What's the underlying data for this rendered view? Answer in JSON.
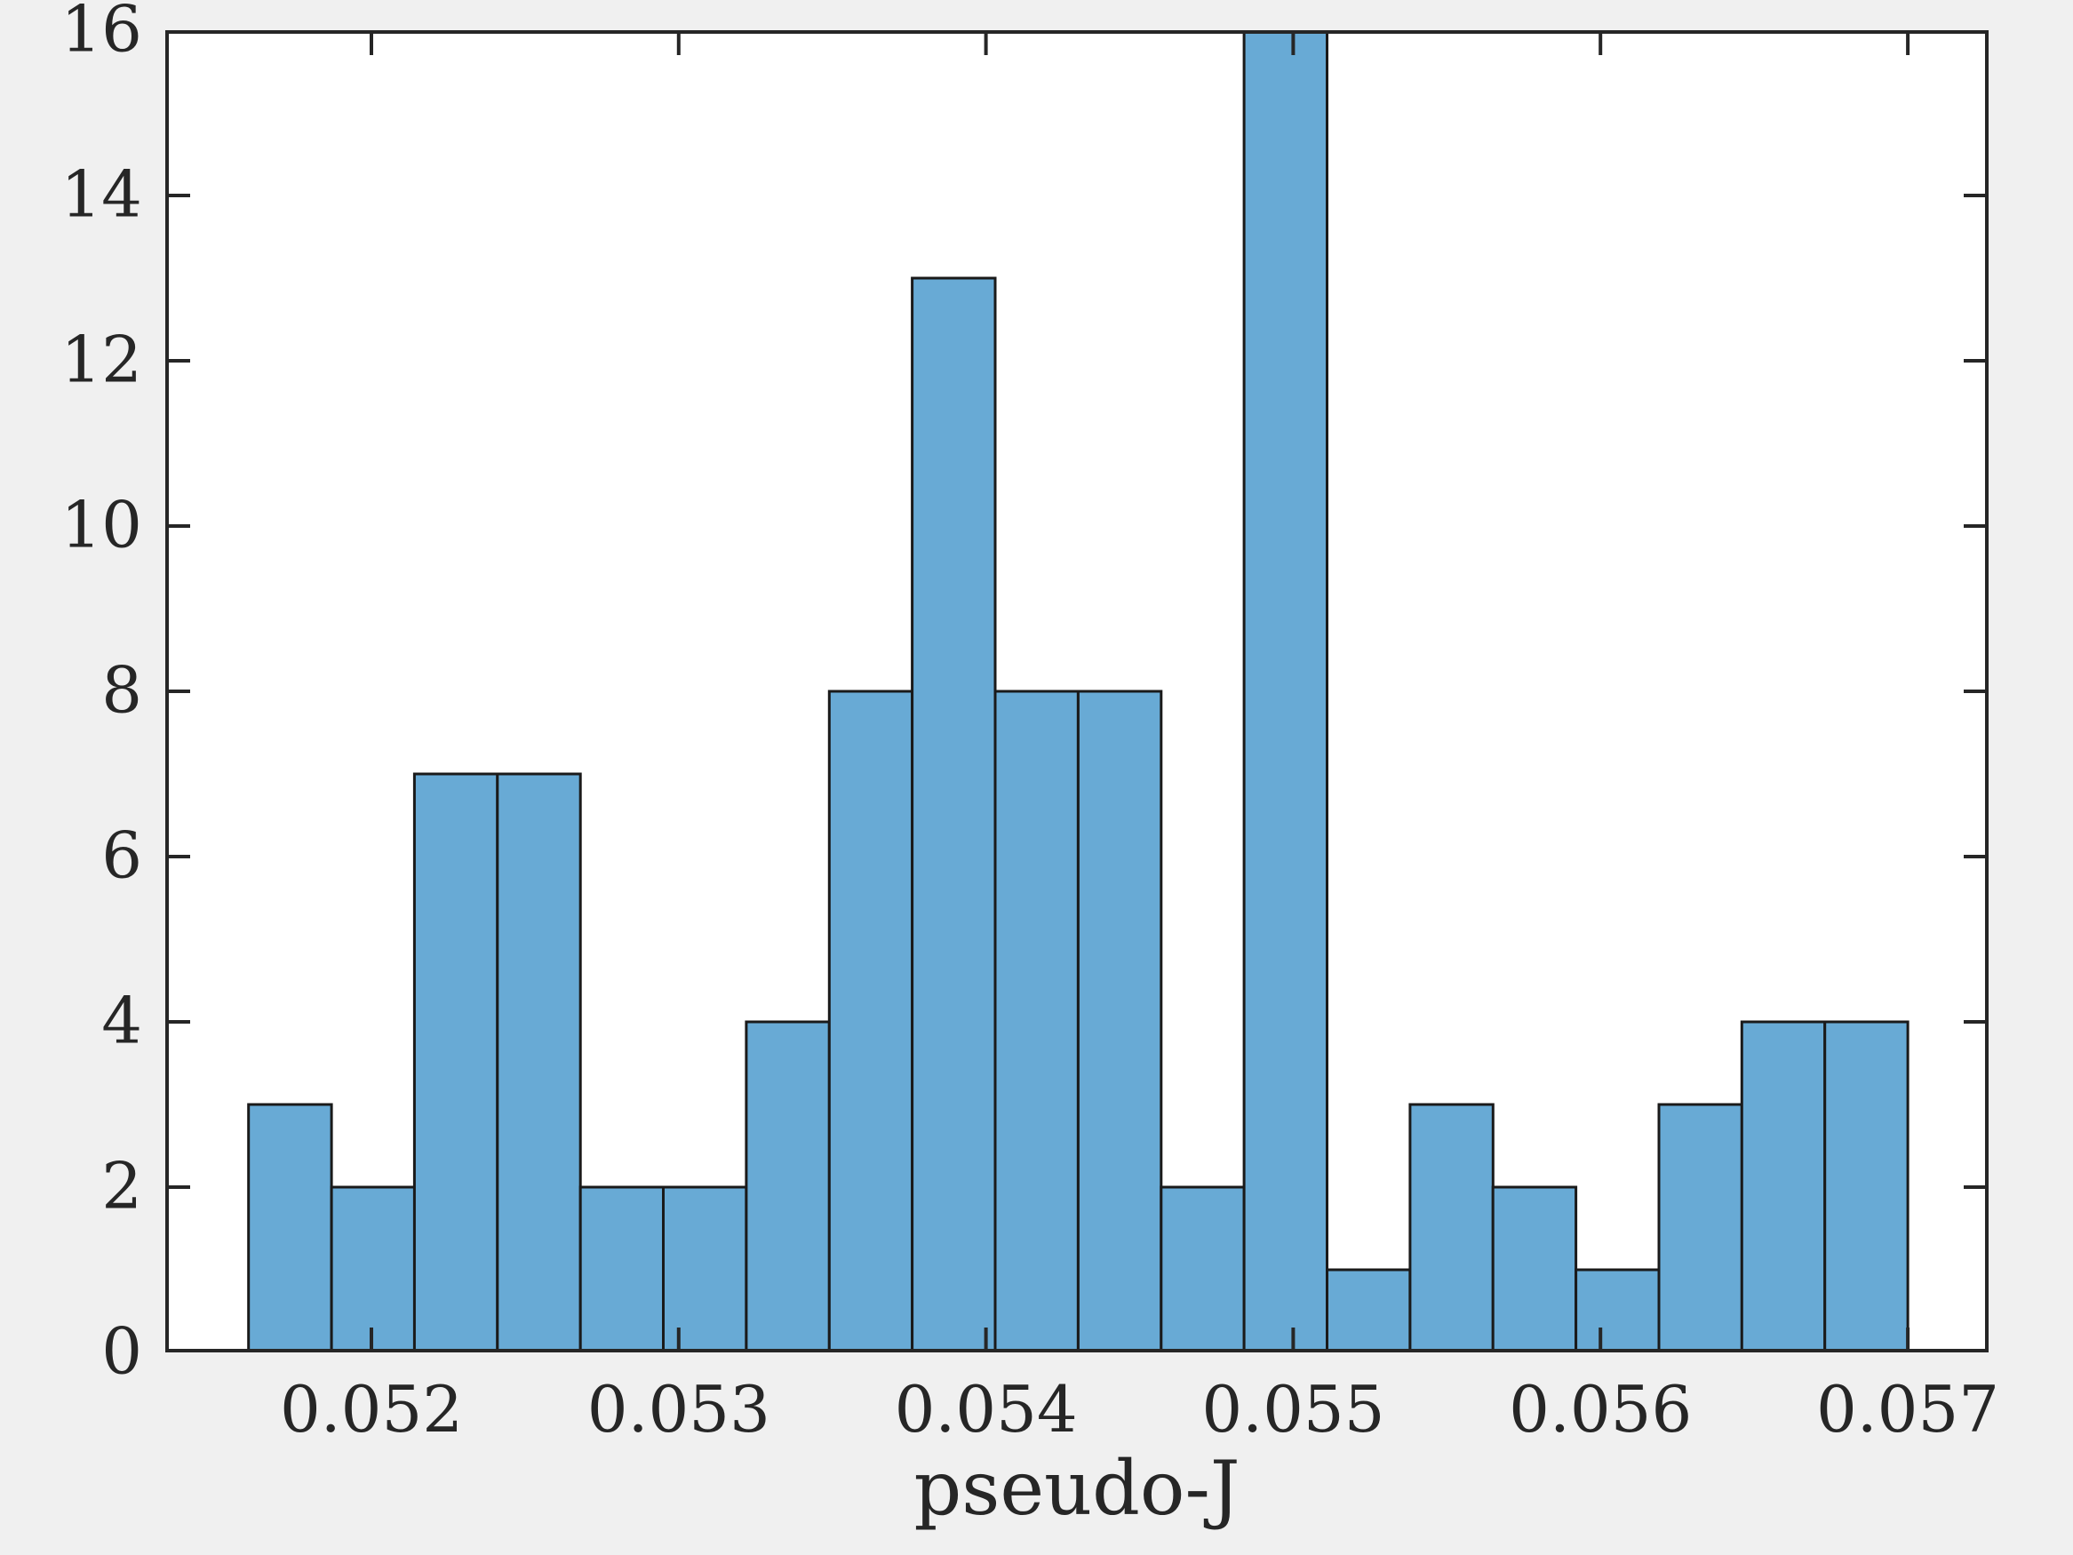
{
  "figure": {
    "background_color": "#F0F0F0",
    "plot_background_color": "#FFFFFF",
    "axis_color": "#262626",
    "xlabel": "pseudo-J"
  },
  "chart_data": {
    "type": "bar",
    "subtype": "histogram",
    "title": "",
    "xlabel": "pseudo-J",
    "ylabel": "",
    "bin_start": 0.0516,
    "bin_width": 0.00027,
    "bin_edges": [
      0.0516,
      0.05187,
      0.05214,
      0.05241,
      0.05268,
      0.05295,
      0.05322,
      0.05349,
      0.05376,
      0.05403,
      0.0543,
      0.05457,
      0.05484,
      0.05511,
      0.05538,
      0.05565,
      0.05592,
      0.05619,
      0.05646,
      0.05673,
      0.057
    ],
    "values": [
      3,
      2,
      7,
      7,
      2,
      2,
      4,
      8,
      13,
      8,
      8,
      2,
      16,
      1,
      3,
      2,
      1,
      3,
      4,
      4
    ],
    "total_count": 100,
    "xlim": [
      0.051329,
      0.057263
    ],
    "ylim": [
      0,
      16
    ],
    "x_ticks": [
      0.052,
      0.053,
      0.054,
      0.055,
      0.056,
      0.057
    ],
    "x_tick_labels": [
      "0.052",
      "0.053",
      "0.054",
      "0.055",
      "0.056",
      "0.057"
    ],
    "y_ticks": [
      0,
      2,
      4,
      6,
      8,
      10,
      12,
      14,
      16
    ],
    "y_tick_labels": [
      "0",
      "2",
      "4",
      "6",
      "8",
      "10",
      "12",
      "14",
      "16"
    ],
    "grid": false,
    "legend": null,
    "bar_fill_color": "#68AAD5",
    "bar_edge_color": "#1A1A1A",
    "tick_direction": "in",
    "box": true
  }
}
